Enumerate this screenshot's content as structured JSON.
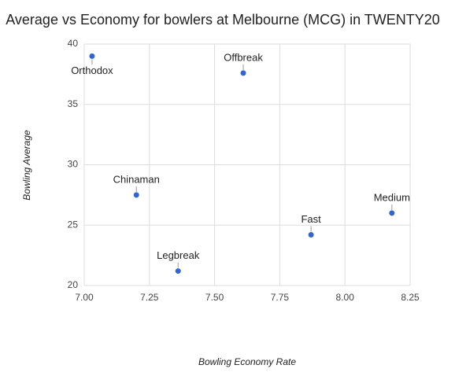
{
  "chart_data": {
    "type": "scatter",
    "title": "Average vs Economy for bowlers at Melbourne (MCG) in TWENTY20",
    "x_label": "Bowling Economy Rate",
    "y_label": "Bowling Average",
    "labels": [
      "Orthodox",
      "Offbreak",
      "Chinaman",
      "Legbreak",
      "Fast",
      "Medium"
    ],
    "x": [
      7.03,
      7.61,
      7.2,
      7.36,
      7.87,
      8.18
    ],
    "values": [
      39.0,
      37.6,
      27.5,
      21.2,
      24.2,
      26.0
    ],
    "color": "#3366cc",
    "xlim": [
      7.0,
      8.25
    ],
    "xticks": [
      {
        "value": 7.0,
        "label": "7.00"
      },
      {
        "value": 7.25,
        "label": "7.25"
      },
      {
        "value": 7.5,
        "label": "7.50"
      },
      {
        "value": 7.75,
        "label": "7.75"
      },
      {
        "value": 8.0,
        "label": "8.00"
      },
      {
        "value": 8.25,
        "label": "8.25"
      }
    ],
    "ylim": [
      20,
      40
    ],
    "yticks": [
      20,
      25,
      30,
      35,
      40
    ],
    "grid": true
  }
}
